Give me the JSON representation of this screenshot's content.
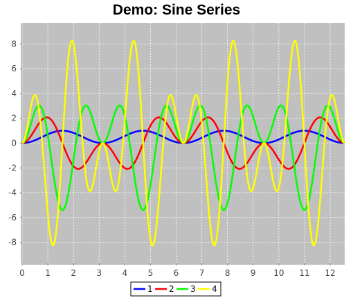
{
  "chart_data": {
    "type": "line",
    "title": "Demo: Sine Series",
    "xlabel": "",
    "ylabel": "",
    "xlim": [
      0,
      12.566
    ],
    "ylim": [
      -9.7,
      9.7
    ],
    "x_ticks": [
      0,
      1,
      2,
      3,
      4,
      5,
      6,
      7,
      8,
      9,
      10,
      11,
      12
    ],
    "y_ticks": [
      -8,
      -6,
      -4,
      -2,
      0,
      2,
      4,
      6,
      8
    ],
    "grid": true,
    "legend_position": "bottom",
    "plot_background": "#c0c0c0",
    "series": [
      {
        "name": "1",
        "color": "#0000ff",
        "amplitude": 1,
        "harmonic": 1
      },
      {
        "name": "2",
        "color": "#ff0000",
        "amplitude": 2.7,
        "harmonic": 2
      },
      {
        "name": "3",
        "color": "#00ff00",
        "amplitude": 5.4,
        "harmonic": 3
      },
      {
        "name": "4",
        "color": "#ffff00",
        "amplitude": 8.9,
        "harmonic": 4
      }
    ]
  }
}
